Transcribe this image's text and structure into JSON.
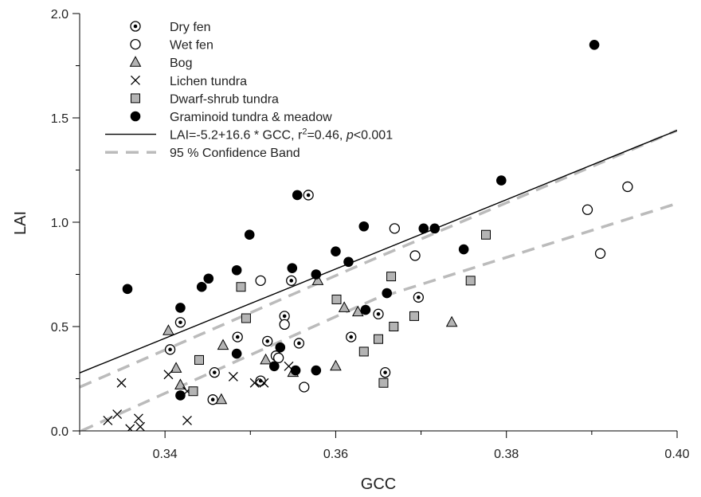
{
  "chart_data": {
    "type": "scatter",
    "xlabel": "GCC",
    "ylabel": "LAI",
    "xlim": [
      0.33,
      0.4
    ],
    "ylim": [
      0.0,
      2.0
    ],
    "xticks": [
      "0.34",
      "0.36",
      "0.38",
      "0.40"
    ],
    "yticks": [
      "0.0",
      "0.5",
      "1.0",
      "1.5",
      "2.0"
    ],
    "grid": false,
    "legend_position": "top-left",
    "series": [
      {
        "name": "Dry fen",
        "marker": "dotted-circle",
        "points": [
          {
            "x": 0.3406,
            "y": 0.39
          },
          {
            "x": 0.3418,
            "y": 0.52
          },
          {
            "x": 0.3458,
            "y": 0.28
          },
          {
            "x": 0.3456,
            "y": 0.15
          },
          {
            "x": 0.3485,
            "y": 0.45
          },
          {
            "x": 0.3512,
            "y": 0.24
          },
          {
            "x": 0.352,
            "y": 0.43
          },
          {
            "x": 0.353,
            "y": 0.36
          },
          {
            "x": 0.354,
            "y": 0.55
          },
          {
            "x": 0.3548,
            "y": 0.72
          },
          {
            "x": 0.3557,
            "y": 0.42
          },
          {
            "x": 0.3568,
            "y": 1.13
          },
          {
            "x": 0.3618,
            "y": 0.45
          },
          {
            "x": 0.365,
            "y": 0.56
          },
          {
            "x": 0.3658,
            "y": 0.28
          },
          {
            "x": 0.3697,
            "y": 0.64
          }
        ]
      },
      {
        "name": "Wet fen",
        "marker": "open-circle",
        "points": [
          {
            "x": 0.3512,
            "y": 0.72
          },
          {
            "x": 0.354,
            "y": 0.51
          },
          {
            "x": 0.3563,
            "y": 0.21
          },
          {
            "x": 0.3669,
            "y": 0.97
          },
          {
            "x": 0.3693,
            "y": 0.84
          },
          {
            "x": 0.3895,
            "y": 1.06
          },
          {
            "x": 0.391,
            "y": 0.85
          },
          {
            "x": 0.3942,
            "y": 1.17
          },
          {
            "x": 0.3533,
            "y": 0.35
          }
        ]
      },
      {
        "name": "Bog",
        "marker": "triangle",
        "points": [
          {
            "x": 0.3404,
            "y": 0.48
          },
          {
            "x": 0.3413,
            "y": 0.3
          },
          {
            "x": 0.3418,
            "y": 0.22
          },
          {
            "x": 0.3466,
            "y": 0.15
          },
          {
            "x": 0.3468,
            "y": 0.41
          },
          {
            "x": 0.3518,
            "y": 0.34
          },
          {
            "x": 0.355,
            "y": 0.28
          },
          {
            "x": 0.3579,
            "y": 0.72
          },
          {
            "x": 0.36,
            "y": 0.31
          },
          {
            "x": 0.361,
            "y": 0.59
          },
          {
            "x": 0.3626,
            "y": 0.57
          },
          {
            "x": 0.3736,
            "y": 0.52
          }
        ]
      },
      {
        "name": "Lichen tundra",
        "marker": "cross",
        "points": [
          {
            "x": 0.3333,
            "y": 0.05
          },
          {
            "x": 0.3344,
            "y": 0.08
          },
          {
            "x": 0.3349,
            "y": 0.23
          },
          {
            "x": 0.3359,
            "y": 0.01
          },
          {
            "x": 0.3369,
            "y": 0.06
          },
          {
            "x": 0.3371,
            "y": 0.02
          },
          {
            "x": 0.3404,
            "y": 0.27
          },
          {
            "x": 0.3426,
            "y": 0.19
          },
          {
            "x": 0.3426,
            "y": 0.05
          },
          {
            "x": 0.348,
            "y": 0.26
          },
          {
            "x": 0.3505,
            "y": 0.23
          },
          {
            "x": 0.3516,
            "y": 0.23
          },
          {
            "x": 0.3545,
            "y": 0.31
          }
        ]
      },
      {
        "name": "Dwarf-shrub tundra",
        "marker": "square",
        "points": [
          {
            "x": 0.3433,
            "y": 0.19
          },
          {
            "x": 0.344,
            "y": 0.34
          },
          {
            "x": 0.3489,
            "y": 0.69
          },
          {
            "x": 0.3495,
            "y": 0.54
          },
          {
            "x": 0.3601,
            "y": 0.63
          },
          {
            "x": 0.3633,
            "y": 0.38
          },
          {
            "x": 0.365,
            "y": 0.44
          },
          {
            "x": 0.3656,
            "y": 0.23
          },
          {
            "x": 0.3665,
            "y": 0.74
          },
          {
            "x": 0.3668,
            "y": 0.5
          },
          {
            "x": 0.3692,
            "y": 0.55
          },
          {
            "x": 0.3758,
            "y": 0.72
          },
          {
            "x": 0.3776,
            "y": 0.94
          }
        ]
      },
      {
        "name": "Graminoid tundra & meadow",
        "marker": "filled-circle",
        "points": [
          {
            "x": 0.3356,
            "y": 0.68
          },
          {
            "x": 0.3418,
            "y": 0.59
          },
          {
            "x": 0.3418,
            "y": 0.17
          },
          {
            "x": 0.3443,
            "y": 0.69
          },
          {
            "x": 0.3451,
            "y": 0.73
          },
          {
            "x": 0.3484,
            "y": 0.77
          },
          {
            "x": 0.3484,
            "y": 0.37
          },
          {
            "x": 0.3499,
            "y": 0.94
          },
          {
            "x": 0.3528,
            "y": 0.31
          },
          {
            "x": 0.3535,
            "y": 0.4
          },
          {
            "x": 0.3549,
            "y": 0.78
          },
          {
            "x": 0.3553,
            "y": 0.29
          },
          {
            "x": 0.3555,
            "y": 1.13
          },
          {
            "x": 0.3577,
            "y": 0.75
          },
          {
            "x": 0.3577,
            "y": 0.29
          },
          {
            "x": 0.36,
            "y": 0.86
          },
          {
            "x": 0.3615,
            "y": 0.81
          },
          {
            "x": 0.3633,
            "y": 0.98
          },
          {
            "x": 0.3635,
            "y": 0.58
          },
          {
            "x": 0.366,
            "y": 0.66
          },
          {
            "x": 0.3703,
            "y": 0.97
          },
          {
            "x": 0.3716,
            "y": 0.97
          },
          {
            "x": 0.375,
            "y": 0.87
          },
          {
            "x": 0.3794,
            "y": 1.2
          },
          {
            "x": 0.3903,
            "y": 1.85
          }
        ]
      }
    ],
    "fit": {
      "name_prefix": "LAI=-5.2+16.6 * GCC, r",
      "name_sup": "2",
      "name_mid": "=0.46, ",
      "name_p": "p",
      "name_suffix": "<0.001",
      "intercept": -5.2,
      "slope": 16.6,
      "x_range": [
        0.33,
        0.4
      ],
      "color": "#000000"
    },
    "confidence_band": {
      "name": "95 % Confidence Band",
      "color": "#bbbbbb",
      "upper": [
        {
          "x": 0.33,
          "y": 0.21
        },
        {
          "x": 0.3646,
          "y": 0.826
        },
        {
          "x": 0.4,
          "y": 1.44
        }
      ],
      "lower": [
        {
          "x": 0.3302,
          "y": 0.0
        },
        {
          "x": 0.3646,
          "y": 0.632
        },
        {
          "x": 0.4,
          "y": 1.09
        }
      ]
    }
  }
}
